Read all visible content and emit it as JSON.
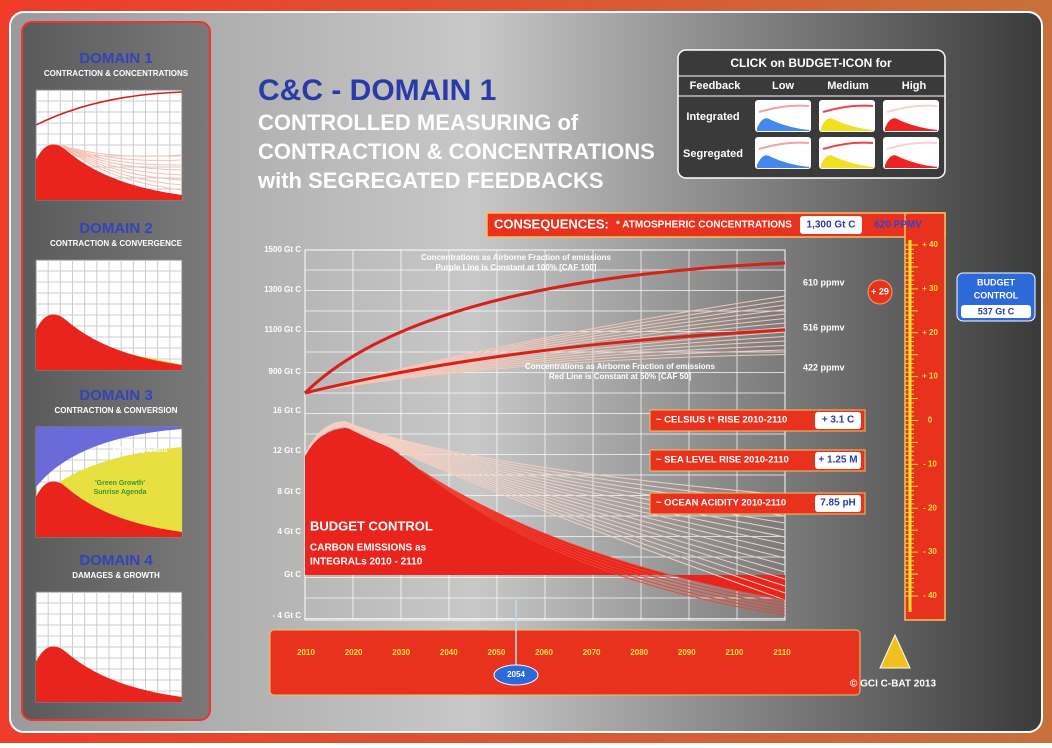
{
  "sidebar": {
    "domains": [
      {
        "title": "DOMAIN 1",
        "subtitle": "CONTRACTION & CONCENTRATIONS"
      },
      {
        "title": "DOMAIN 2",
        "subtitle": "CONTRACTION & CONVERGENCE"
      },
      {
        "title": "DOMAIN 3",
        "subtitle": "CONTRACTION & CONVERSION"
      },
      {
        "title": "DOMAIN 4",
        "subtitle": "DAMAGES & GROWTH"
      }
    ],
    "domain3_labels": [
      "Efficiency Gains",
      "'Green Growth'",
      "Sunrise Agenda"
    ]
  },
  "header": {
    "brand": "C&C - DOMAIN 1",
    "lines": [
      "CONTROLLED MEASURING of",
      "CONTRACTION & CONCENTRATIONS",
      "with SEGREGATED FEEDBACKS"
    ]
  },
  "budget_icons": {
    "title": "CLICK on BUDGET-ICON for",
    "columns": [
      "Feedback",
      "Low",
      "Medium",
      "High"
    ],
    "rows": [
      "Integrated",
      "Segregated"
    ]
  },
  "consequences": {
    "label": "CONSEQUENCES:",
    "item": "* ATMOSPHERIC CONCENTRATIONS",
    "value": "1,300 Gt C",
    "ppmv": "620 PPMV"
  },
  "chart": {
    "y_labels_upper": [
      "1500 Gt C",
      "1300 Gt C",
      "1100 Gt C",
      "900 Gt C"
    ],
    "y_labels_lower": [
      "16 Gt C",
      "12 Gt C",
      "8 Gt C",
      "4 Gt C",
      "Gt C",
      "- 4 Gt C"
    ],
    "ppmv": [
      "610 ppmv",
      "516 ppmv",
      "422 ppmv"
    ],
    "note_top": [
      "Concentrations as Airborne Fraction of emissions",
      "Purple Line is Constant at 100% [CAF 100]"
    ],
    "note_mid": [
      "Concentrations as Airborne Fraction of emissions",
      "Red Line is Constant at 50% [CAF 50]"
    ],
    "budget": [
      "BUDGET CONTROL",
      "CARBON EMISSIONS as",
      "INTEGRALs 2010 - 2110"
    ]
  },
  "indicators": [
    {
      "label": "~ CELSIUS t° RISE 2010-2110",
      "value": "+ 3.1 C"
    },
    {
      "label": "~ SEA LEVEL RISE 2010-2110",
      "value": "+ 1.25 M"
    },
    {
      "label": "~ OCEAN ACIDITY 2010-2110",
      "value": "7.85 pH"
    }
  ],
  "scale": {
    "ticks": [
      "+ 40",
      "+ 30",
      "+ 20",
      "+ 10",
      "0",
      "- 10",
      "- 20",
      "- 30",
      "- 40"
    ],
    "marker": "+ 29"
  },
  "budget_control": {
    "title": [
      "BUDGET",
      "CONTROL"
    ],
    "value": "537 Gt C"
  },
  "timeline": {
    "years": [
      "2010",
      "2020",
      "2030",
      "2040",
      "2050",
      "2060",
      "2070",
      "2080",
      "2090",
      "2100",
      "2110"
    ],
    "marker": "2054"
  },
  "credit": "© GCI C-BAT 2013"
}
